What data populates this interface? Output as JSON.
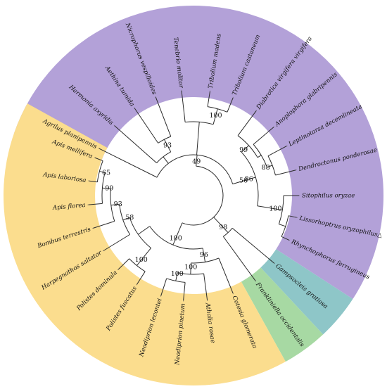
{
  "colors": {
    "coleoptera": "#b3a1d8",
    "hymenoptera": "#fbdd8e",
    "orthoptera": "#8ec6c8",
    "thysanoptera": "#a7d9a3",
    "branch": "#2b2b2b"
  },
  "taxa": [
    {
      "name": "Agrilus planipennis",
      "clade": "coleoptera"
    },
    {
      "name": "Harmonia axyridis",
      "clade": "coleoptera"
    },
    {
      "name": "Aethina tumida",
      "clade": "coleoptera"
    },
    {
      "name": "Nicrophorus vespilloides",
      "clade": "coleoptera"
    },
    {
      "name": "Tenebrio molitor",
      "clade": "coleoptera"
    },
    {
      "name": "Tribolium madens",
      "clade": "coleoptera"
    },
    {
      "name": "Tribolium castaneum",
      "clade": "coleoptera"
    },
    {
      "name": "Diabrotica virgifera virgifera",
      "clade": "coleoptera"
    },
    {
      "name": "Anoplophora glabripennis",
      "clade": "coleoptera"
    },
    {
      "name": "Leptinotarsa decemlineata",
      "clade": "coleoptera"
    },
    {
      "name": "Dendroctonus ponderosae",
      "clade": "coleoptera"
    },
    {
      "name": "Sitophilus oryzae",
      "clade": "coleoptera"
    },
    {
      "name": "Lissorhoptrus oryzophilus△",
      "clade": "coleoptera"
    },
    {
      "name": "Rhynchophorus ferrugineus",
      "clade": "coleoptera"
    },
    {
      "name": "Gampsocleis gratiosa",
      "clade": "orthoptera"
    },
    {
      "name": "Frankliniella occidentalis",
      "clade": "thysanoptera"
    },
    {
      "name": "Cotesia glomerata",
      "clade": "hymenoptera"
    },
    {
      "name": "Athalia rosae",
      "clade": "hymenoptera"
    },
    {
      "name": "Neodiprion pinetum",
      "clade": "hymenoptera"
    },
    {
      "name": "Neodiprion lecontei",
      "clade": "hymenoptera"
    },
    {
      "name": "Polistes fuscatus",
      "clade": "hymenoptera"
    },
    {
      "name": "Polistes dominula",
      "clade": "hymenoptera"
    },
    {
      "name": "Harpegnathos saltator",
      "clade": "hymenoptera"
    },
    {
      "name": "Bombus terrestris",
      "clade": "hymenoptera"
    },
    {
      "name": "Apis florea",
      "clade": "hymenoptera"
    },
    {
      "name": "Apis laboriosa",
      "clade": "hymenoptera"
    },
    {
      "name": "Apis mellifera",
      "clade": "hymenoptera"
    }
  ],
  "support_values": [
    "93",
    "100",
    "99",
    "88",
    "86",
    "56",
    "78",
    "100",
    "49",
    "98",
    "65",
    "99",
    "93",
    "58",
    "100",
    "96",
    "100",
    "100",
    "100"
  ]
}
